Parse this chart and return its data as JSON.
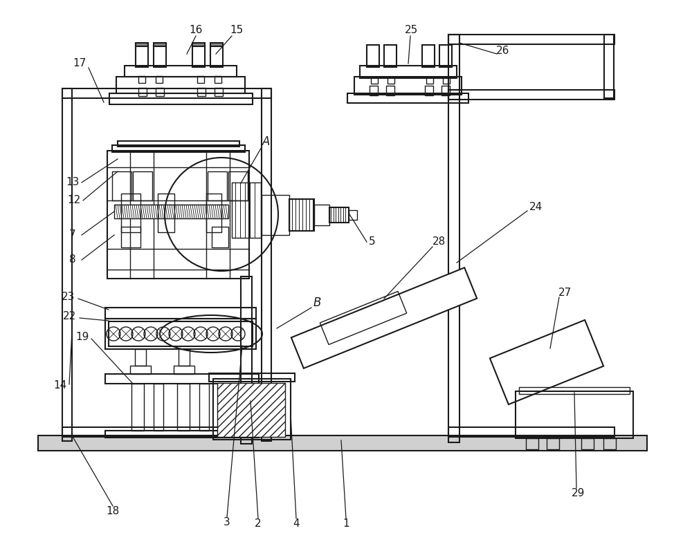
{
  "bg_color": "#ffffff",
  "line_color": "#1a1a1a",
  "fig_width": 10.0,
  "fig_height": 8.0
}
